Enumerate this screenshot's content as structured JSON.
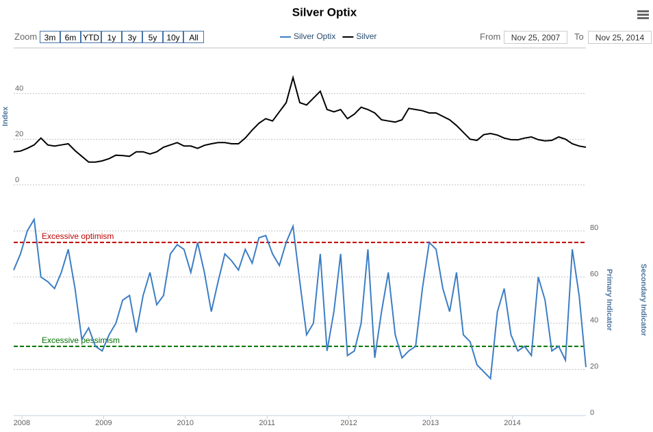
{
  "toolbar": {
    "zoom_label": "Zoom",
    "buttons": [
      "3m",
      "6m",
      "YTD",
      "1y",
      "3y",
      "5y",
      "10y",
      "All"
    ],
    "from_label": "From",
    "from": "Nov 25, 2007",
    "to_label": "To",
    "to": "Nov 25, 2014"
  },
  "chart_data": {
    "type": "line",
    "title": "Silver Optix",
    "x": [
      2007.9,
      2007.983,
      2008.067,
      2008.15,
      2008.233,
      2008.317,
      2008.4,
      2008.483,
      2008.567,
      2008.65,
      2008.733,
      2008.817,
      2008.9,
      2008.983,
      2009.067,
      2009.15,
      2009.233,
      2009.317,
      2009.4,
      2009.483,
      2009.567,
      2009.65,
      2009.733,
      2009.817,
      2009.9,
      2009.983,
      2010.067,
      2010.15,
      2010.233,
      2010.317,
      2010.4,
      2010.483,
      2010.567,
      2010.65,
      2010.733,
      2010.817,
      2010.9,
      2010.983,
      2011.067,
      2011.15,
      2011.233,
      2011.317,
      2011.4,
      2011.483,
      2011.567,
      2011.65,
      2011.733,
      2011.817,
      2011.9,
      2011.983,
      2012.067,
      2012.15,
      2012.233,
      2012.317,
      2012.4,
      2012.483,
      2012.567,
      2012.65,
      2012.733,
      2012.817,
      2012.9,
      2012.983,
      2013.067,
      2013.15,
      2013.233,
      2013.317,
      2013.4,
      2013.483,
      2013.567,
      2013.65,
      2013.733,
      2013.817,
      2013.9,
      2013.983,
      2014.067,
      2014.15,
      2014.233,
      2014.317,
      2014.4,
      2014.483,
      2014.567,
      2014.65,
      2014.733,
      2014.817,
      2014.9
    ],
    "series": [
      {
        "name": "Silver Optix",
        "color": "#3b7dc4",
        "axis": "y2",
        "values": [
          63,
          70,
          80,
          85,
          60,
          58,
          55,
          62,
          72,
          55,
          33,
          38,
          30,
          28,
          35,
          40,
          50,
          52,
          36,
          52,
          62,
          48,
          52,
          70,
          74,
          72,
          62,
          75,
          62,
          45,
          58,
          70,
          67,
          63,
          72,
          66,
          77,
          78,
          70,
          65,
          75,
          82,
          58,
          35,
          40,
          70,
          28,
          45,
          70,
          26,
          28,
          40,
          72,
          25,
          45,
          62,
          35,
          25,
          28,
          30,
          55,
          75,
          72,
          55,
          45,
          62,
          35,
          32,
          22,
          19,
          16,
          45,
          55,
          35,
          28,
          30,
          26,
          60,
          50,
          28,
          30,
          24,
          72,
          52,
          21
        ]
      },
      {
        "name": "Silver",
        "color": "#000000",
        "values": [
          14.5,
          14.8,
          16,
          17.5,
          20.5,
          17.5,
          17,
          17.5,
          18,
          15,
          12.5,
          10,
          10,
          10.5,
          11.5,
          13,
          12.8,
          12.5,
          14.5,
          14.5,
          13.5,
          14.5,
          16.5,
          17.5,
          18.5,
          17,
          17,
          16,
          17.3,
          18,
          18.5,
          18.5,
          18,
          18,
          20.5,
          24,
          27,
          29,
          28,
          32,
          36,
          47,
          36,
          35,
          38,
          41,
          33,
          32,
          33,
          29,
          31,
          34,
          33,
          31.5,
          28.5,
          28,
          27.5,
          28.5,
          33.5,
          33,
          32.5,
          31.5,
          31.5,
          30,
          28.5,
          26,
          23,
          20,
          19.5,
          22,
          22.5,
          21.8,
          20.5,
          19.8,
          19.7,
          20.5,
          21,
          19.8,
          19.3,
          19.5,
          21,
          20,
          18,
          17,
          16.5
        ]
      }
    ],
    "xlim": [
      2007.9,
      2014.9
    ],
    "xticks": [
      2008,
      2009,
      2010,
      2011,
      2012,
      2013,
      2014
    ],
    "ylim": [
      0,
      60
    ],
    "yticks": [
      0,
      20,
      40
    ],
    "y_label": "Index",
    "y2lim": [
      0,
      94
    ],
    "y2ticks": [
      0,
      20,
      40,
      60,
      80
    ],
    "y2_label": "Primary Indicator",
    "y3_label": "Secondary Indicator",
    "plot_lines": [
      {
        "value": 75,
        "label": "Excessive optimism",
        "color": "#c00000"
      },
      {
        "value": 30,
        "label": "Excessive pessimism",
        "color": "#007000"
      }
    ],
    "grid": true,
    "legend": "top"
  }
}
